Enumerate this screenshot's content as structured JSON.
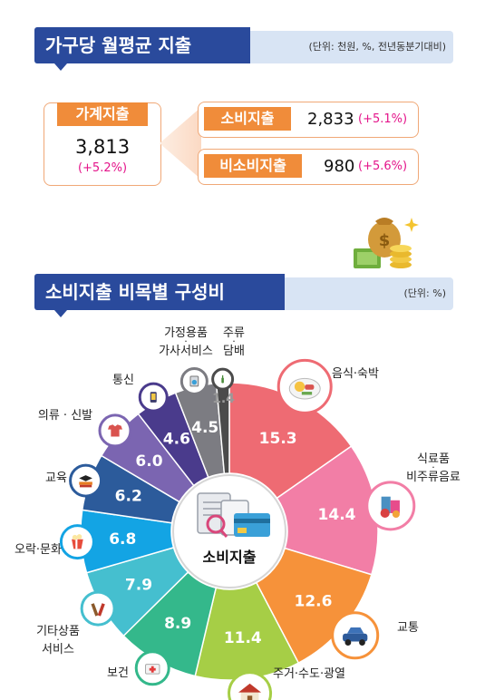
{
  "header1": {
    "title": "가구당 월평균 지출",
    "unit": "(단위: 천원, %, 전년동분기대비)"
  },
  "household": {
    "label": "가계지출",
    "value": "3,813",
    "change": "(+5.2%)"
  },
  "consumption": {
    "label": "소비지출",
    "value": "2,833",
    "change": "(+5.1%)"
  },
  "nonconsumption": {
    "label": "비소비지출",
    "value": "980",
    "change": "(+5.6%)"
  },
  "header2": {
    "title": "소비지출 비목별 구성비",
    "unit": "(단위: %)"
  },
  "center_label": "소비지출",
  "colors": {
    "header_dark": "#2a4a9c",
    "header_light": "#d8e4f4",
    "accent_orange": "#f08c3a",
    "change_magenta": "#e4148a"
  },
  "chart_data": {
    "type": "pie",
    "variant": "donut",
    "title": "",
    "slices": [
      {
        "label": "음식·숙박",
        "value": 15.3,
        "value_label": "15.3",
        "color": "#ee6b73",
        "icon": "food-plate-icon"
      },
      {
        "label": "식료품·비주류음료",
        "value": 14.4,
        "value_label": "14.4",
        "color": "#f27ea6",
        "icon": "groceries-icon"
      },
      {
        "label": "교통",
        "value": 12.6,
        "value_label": "12.6",
        "color": "#f6923a",
        "icon": "car-icon"
      },
      {
        "label": "주거·수도·광열",
        "value": 11.4,
        "value_label": "11.4",
        "color": "#a6ce46",
        "icon": "house-icon"
      },
      {
        "label": "보건",
        "value": 8.9,
        "value_label": "8.9",
        "color": "#34b88b",
        "icon": "medical-kit-icon"
      },
      {
        "label": "기타상품·서비스",
        "value": 7.9,
        "value_label": "7.9",
        "color": "#45bfcf",
        "icon": "tools-icon"
      },
      {
        "label": "오락·문화",
        "value": 6.8,
        "value_label": "6.8",
        "color": "#13a4e4",
        "icon": "popcorn-icon"
      },
      {
        "label": "교육",
        "value": 6.2,
        "value_label": "6.2",
        "color": "#2c5b9b",
        "icon": "books-icon"
      },
      {
        "label": "의류 · 신발",
        "value": 6.0,
        "value_label": "6.0",
        "color": "#7b65b1",
        "icon": "shirt-icon"
      },
      {
        "label": "통신",
        "value": 4.6,
        "value_label": "4.6",
        "color": "#4a3b8c",
        "icon": "phone-icon"
      },
      {
        "label": "가정용품·가사서비스",
        "value": 4.5,
        "value_label": "4.5",
        "color": "#7c7c82",
        "icon": "appliance-icon"
      },
      {
        "label": "주류·담배",
        "value": 1.4,
        "value_label": "1.4",
        "color": "#4b4b4b",
        "icon": "bottle-icon"
      }
    ]
  }
}
